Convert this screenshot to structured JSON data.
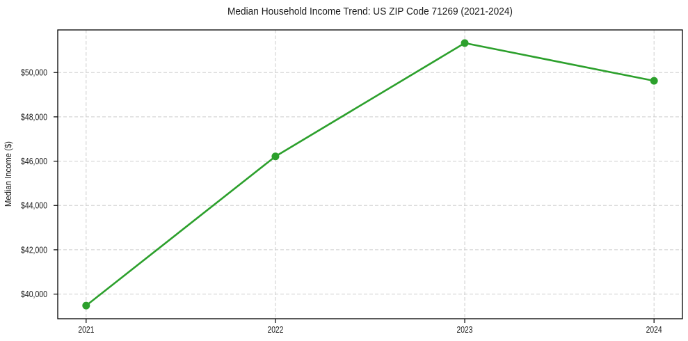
{
  "chart_data": {
    "type": "line",
    "title": "Median Household Income Trend: US ZIP Code 71269 (2021-2024)",
    "xlabel": "",
    "ylabel": "Median Income ($)",
    "x": [
      2021,
      2022,
      2023,
      2024
    ],
    "xtick_labels": [
      "2021",
      "2022",
      "2023",
      "2024"
    ],
    "yticks": [
      40000,
      42000,
      44000,
      46000,
      48000,
      50000
    ],
    "ytick_labels": [
      "$40,000",
      "$42,000",
      "$44,000",
      "$46,000",
      "$48,000",
      "$50,000"
    ],
    "series": [
      {
        "name": "Median Household Income",
        "values": [
          39480,
          46215,
          51330,
          49625
        ]
      }
    ],
    "xlim": [
      2020.85,
      2024.15
    ],
    "ylim": [
      38888,
      51923
    ],
    "grid": true,
    "legend_position": "none",
    "line_color": "#2ca02c",
    "marker": "circle",
    "grid_color": "#cdcdcd",
    "axis_color": "#000000"
  }
}
